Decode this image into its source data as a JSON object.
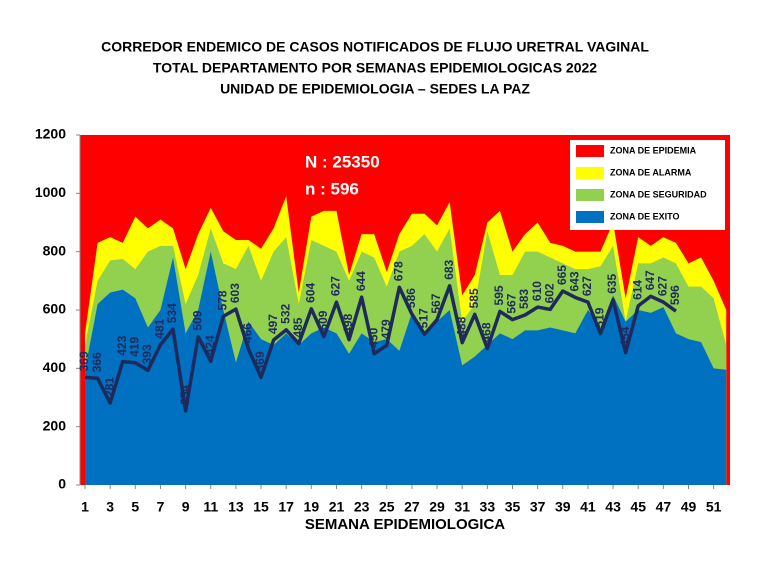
{
  "chart_data": {
    "type": "line",
    "title": [
      "CORREDOR ENDEMICO DE CASOS NOTIFICADOS DE FLUJO URETRAL VAGINAL",
      "TOTAL DEPARTAMENTO POR SEMANAS EPIDEMIOLOGICAS 2022",
      "UNIDAD DE EPIDEMIOLOGIA – SEDES LA PAZ"
    ],
    "annotations": [
      "N : 25350",
      "n :   596"
    ],
    "x_label": "SEMANA EPIDEMIOLOGICA",
    "x": [
      1,
      2,
      3,
      4,
      5,
      6,
      7,
      8,
      9,
      10,
      11,
      12,
      13,
      14,
      15,
      16,
      17,
      18,
      19,
      20,
      21,
      22,
      23,
      24,
      25,
      26,
      27,
      28,
      29,
      30,
      31,
      32,
      33,
      34,
      35,
      36,
      37,
      38,
      39,
      40,
      41,
      42,
      43,
      44,
      45,
      46,
      47,
      48,
      49,
      50,
      51,
      52
    ],
    "xlim": [
      0.6,
      52.3
    ],
    "xticks": [
      1,
      3,
      5,
      7,
      9,
      11,
      13,
      15,
      17,
      19,
      21,
      23,
      25,
      27,
      29,
      31,
      33,
      35,
      37,
      39,
      41,
      43,
      45,
      47,
      49,
      51
    ],
    "ylim": [
      0,
      1200
    ],
    "yticks": [
      0,
      200,
      400,
      600,
      800,
      1000,
      1200
    ],
    "legend_position": "upper right",
    "zones": [
      {
        "name": "ZONA DE EPIDEMIA",
        "color": "#ff0000"
      },
      {
        "name": "ZONA DE ALARMA",
        "color": "#ffff00",
        "values": [
          520,
          830,
          850,
          830,
          920,
          880,
          910,
          880,
          740,
          860,
          950,
          870,
          840,
          840,
          810,
          880,
          990,
          660,
          920,
          940,
          940,
          720,
          860,
          860,
          730,
          860,
          930,
          930,
          890,
          970,
          650,
          720,
          900,
          940,
          800,
          860,
          900,
          830,
          820,
          800,
          800,
          800,
          900,
          640,
          850,
          820,
          850,
          830,
          760,
          780,
          700,
          600
        ]
      },
      {
        "name": "ZONA DE  SEGURIDAD",
        "color": "#92d050",
        "values": [
          480,
          700,
          770,
          775,
          740,
          800,
          820,
          820,
          620,
          720,
          880,
          760,
          740,
          820,
          700,
          800,
          850,
          620,
          840,
          820,
          800,
          700,
          800,
          780,
          680,
          800,
          820,
          860,
          800,
          880,
          560,
          620,
          870,
          720,
          720,
          800,
          800,
          780,
          760,
          740,
          740,
          750,
          820,
          560,
          760,
          760,
          780,
          760,
          680,
          680,
          640,
          480
        ]
      },
      {
        "name": "ZONA DE  EXITO",
        "color": "#0070c0",
        "values": [
          395,
          620,
          660,
          670,
          640,
          540,
          600,
          780,
          520,
          600,
          800,
          600,
          420,
          560,
          500,
          480,
          520,
          480,
          520,
          540,
          520,
          450,
          520,
          490,
          500,
          460,
          590,
          520,
          560,
          600,
          410,
          440,
          480,
          520,
          500,
          530,
          530,
          540,
          530,
          520,
          600,
          540,
          650,
          560,
          600,
          590,
          610,
          520,
          500,
          490,
          400,
          395
        ]
      }
    ],
    "series": [
      {
        "color": "#1f2a5c",
        "values": [
          369,
          366,
          281,
          423,
          419,
          393,
          481,
          534,
          254,
          509,
          424,
          578,
          603,
          466,
          369,
          497,
          532,
          485,
          604,
          509,
          627,
          498,
          644,
          450,
          479,
          678,
          586,
          517,
          567,
          683,
          488,
          585,
          468,
          595,
          567,
          583,
          610,
          602,
          665,
          643,
          627,
          519,
          635,
          454,
          614,
          647,
          627,
          596,
          null,
          null,
          null,
          null
        ]
      }
    ]
  }
}
